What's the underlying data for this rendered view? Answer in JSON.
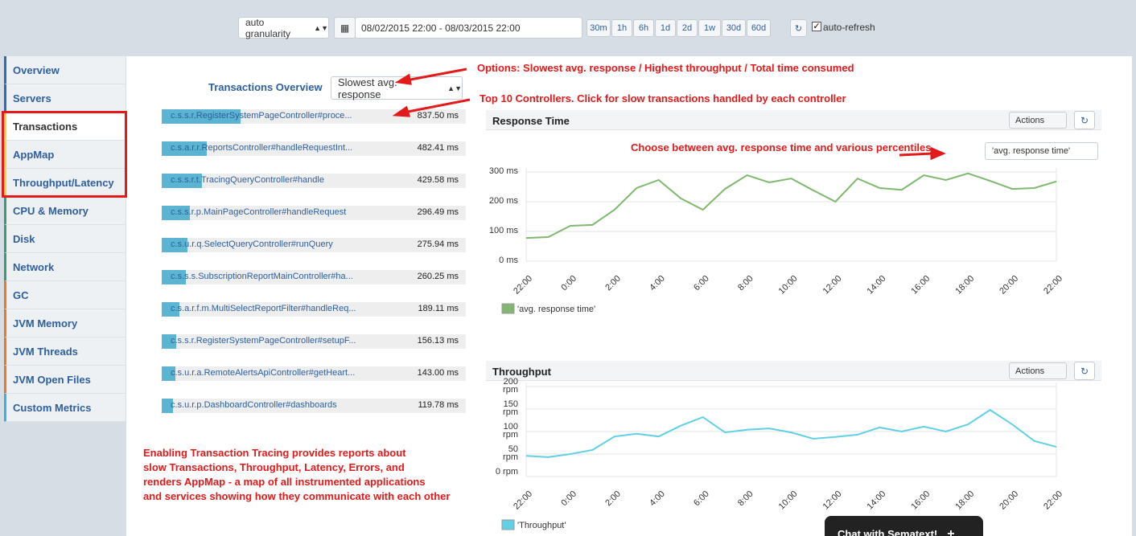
{
  "toolbar": {
    "granularity": "auto granularity",
    "date_range": "08/02/2015 22:00 - 08/03/2015 22:00",
    "ranges": [
      "30m",
      "1h",
      "6h",
      "1d",
      "2d",
      "1w",
      "30d",
      "60d"
    ],
    "auto_refresh": "auto-refresh"
  },
  "sidebar": {
    "items": [
      "Overview",
      "Servers",
      "Transactions",
      "AppMap",
      "Throughput/Latency",
      "CPU & Memory",
      "Disk",
      "Network",
      "GC",
      "JVM Memory",
      "JVM Threads",
      "JVM Open Files",
      "Custom Metrics"
    ]
  },
  "transactions": {
    "title": "Transactions Overview",
    "sort": "Slowest avg. response",
    "rows": [
      {
        "name": "c.s.s.r.RegisterSystemPageController#proce...",
        "value": 837.5,
        "value_label": "837.50 ms"
      },
      {
        "name": "c.s.a.r.r.ReportsController#handleRequestInt...",
        "value": 482.41,
        "value_label": "482.41 ms"
      },
      {
        "name": "c.s.s.r.t.TracingQueryController#handle",
        "value": 429.58,
        "value_label": "429.58 ms"
      },
      {
        "name": "c.s.s.r.p.MainPageController#handleRequest",
        "value": 296.49,
        "value_label": "296.49 ms"
      },
      {
        "name": "c.s.u.r.q.SelectQueryController#runQuery",
        "value": 275.94,
        "value_label": "275.94 ms"
      },
      {
        "name": "c.s.s.s.SubscriptionReportMainController#ha...",
        "value": 260.25,
        "value_label": "260.25 ms"
      },
      {
        "name": "c.s.a.r.f.m.MultiSelectReportFilter#handleReq...",
        "value": 189.11,
        "value_label": "189.11 ms"
      },
      {
        "name": "c.s.s.r.RegisterSystemPageController#setupF...",
        "value": 156.13,
        "value_label": "156.13 ms"
      },
      {
        "name": "c.s.u.r.a.RemoteAlertsApiController#getHeart...",
        "value": 143.0,
        "value_label": "143.00 ms"
      },
      {
        "name": "c.s.u.r.p.DashboardController#dashboards",
        "value": 119.78,
        "value_label": "119.78 ms"
      }
    ]
  },
  "annotations": {
    "options": "Options: Slowest avg. response / Highest throughput / Total time consumed",
    "top10": "Top 10 Controllers.  Click for slow transactions handled by each controller",
    "percentiles": "Choose between avg. response time and various percentiles",
    "tracing": [
      "Enabling Transaction Tracing provides reports about",
      "slow Transactions, Throughput, Latency, Errors, and",
      "renders AppMap - a map of all instrumented applications",
      "and services showing how they communicate with each other"
    ]
  },
  "chart_data": [
    {
      "type": "line",
      "title": "Response Time",
      "actions": "Actions",
      "metric_select": "'avg. response time'",
      "categories": [
        "22:00",
        null,
        "0:00",
        null,
        "2:00",
        null,
        "4:00",
        null,
        "6:00",
        null,
        "8:00",
        null,
        "10:00",
        null,
        "12:00",
        null,
        "14:00",
        null,
        "16:00",
        null,
        "18:00",
        null,
        "20:00",
        null,
        "22:00"
      ],
      "series": [
        {
          "name": "'avg. response time'",
          "color": "#7fb86e",
          "values": [
            78,
            81,
            119,
            122,
            173,
            246,
            273,
            211,
            173,
            243,
            289,
            265,
            278,
            238,
            200,
            278,
            246,
            240,
            289,
            273,
            295,
            270,
            243,
            246,
            268
          ]
        }
      ],
      "ylim": [
        0,
        300
      ],
      "yticks": [
        {
          "value": 0,
          "label": "0 ms"
        },
        {
          "value": 100,
          "label": "100 ms"
        },
        {
          "value": 200,
          "label": "200 ms"
        },
        {
          "value": 300,
          "label": "300 ms"
        }
      ],
      "grid": true
    },
    {
      "type": "line",
      "title": "Throughput",
      "actions": "Actions",
      "categories": [
        "22:00",
        null,
        "0:00",
        null,
        "2:00",
        null,
        "4:00",
        null,
        "6:00",
        null,
        "8:00",
        null,
        "10:00",
        null,
        "12:00",
        null,
        "14:00",
        null,
        "16:00",
        null,
        "18:00",
        null,
        "20:00",
        null,
        "22:00"
      ],
      "series": [
        {
          "name": "'Throughput'",
          "color": "#5fd0e6",
          "values": [
            46,
            43,
            50,
            59,
            89,
            95,
            89,
            113,
            132,
            98,
            104,
            107,
            98,
            84,
            88,
            93,
            109,
            100,
            111,
            100,
            116,
            148,
            116,
            79,
            66
          ]
        }
      ],
      "ylim": [
        0,
        200
      ],
      "yticks": [
        {
          "value": 0,
          "label": "0 rpm"
        },
        {
          "value": 50,
          "label": "50 rpm"
        },
        {
          "value": 100,
          "label": "100 rpm"
        },
        {
          "value": 150,
          "label": "150 rpm"
        },
        {
          "value": 200,
          "label": "200 rpm"
        }
      ],
      "grid": true
    }
  ],
  "chat": "Chat with Sematext!"
}
